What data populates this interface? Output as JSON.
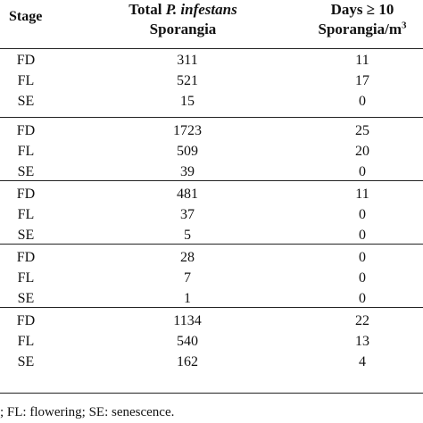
{
  "header": {
    "stage": "Stage",
    "total_prefix": "Total ",
    "total_italic": "P. infestans",
    "total_line2": "Sporangia",
    "days_line1": "Days ≥ 10",
    "days_line2": "Sporangia/m",
    "days_sup": "3"
  },
  "groups": [
    {
      "rows": [
        {
          "stage": "FD",
          "total": "311",
          "days": "11"
        },
        {
          "stage": "FL",
          "total": "521",
          "days": "17"
        },
        {
          "stage": "SE",
          "total": "15",
          "days": "0"
        }
      ]
    },
    {
      "rows": [
        {
          "stage": "FD",
          "total": "1723",
          "days": "25"
        },
        {
          "stage": "FL",
          "total": "509",
          "days": "20"
        },
        {
          "stage": "SE",
          "total": "39",
          "days": "0"
        }
      ]
    },
    {
      "rows": [
        {
          "stage": "FD",
          "total": "481",
          "days": "11"
        },
        {
          "stage": "FL",
          "total": "37",
          "days": "0"
        },
        {
          "stage": "SE",
          "total": "5",
          "days": "0"
        }
      ]
    },
    {
      "rows": [
        {
          "stage": "FD",
          "total": "28",
          "days": "0"
        },
        {
          "stage": "FL",
          "total": "7",
          "days": "0"
        },
        {
          "stage": "SE",
          "total": "1",
          "days": "0"
        }
      ]
    },
    {
      "rows": [
        {
          "stage": "FD",
          "total": "1134",
          "days": "22"
        },
        {
          "stage": "FL",
          "total": "540",
          "days": "13"
        },
        {
          "stage": "SE",
          "total": "162",
          "days": "4"
        }
      ]
    }
  ],
  "footnote": "; FL: flowering; SE: senescence."
}
